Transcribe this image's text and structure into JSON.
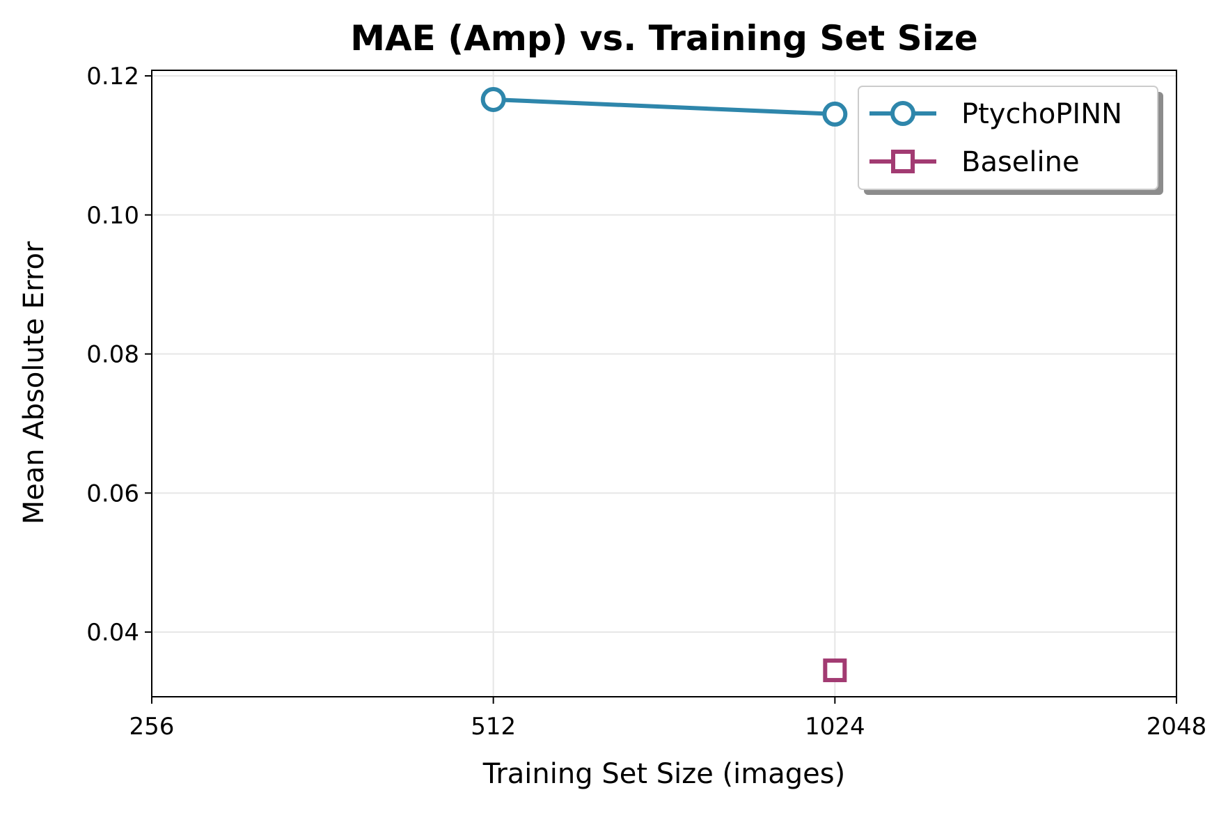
{
  "chart_data": {
    "type": "line",
    "title": "MAE (Amp) vs. Training Set Size",
    "xlabel": "Training Set Size (images)",
    "ylabel": "Mean Absolute Error",
    "x_scale": "log2",
    "x_ticks": [
      256,
      512,
      1024,
      2048
    ],
    "x_tick_labels": [
      "256",
      "512",
      "1024",
      "2048"
    ],
    "xlim": [
      256,
      2048
    ],
    "y_ticks": [
      0.04,
      0.06,
      0.08,
      0.1,
      0.12
    ],
    "y_tick_labels": [
      "0.04",
      "0.06",
      "0.08",
      "0.10",
      "0.12"
    ],
    "ylim": [
      0.0307,
      0.1208
    ],
    "grid": true,
    "legend_position": "top-right",
    "series": [
      {
        "name": "PtychoPINN",
        "x": [
          512,
          1024
        ],
        "y": [
          0.1166,
          0.1145
        ],
        "color": "#2e86ab",
        "marker": "circle",
        "line": true
      },
      {
        "name": "Baseline",
        "x": [
          1024
        ],
        "y": [
          0.0345
        ],
        "color": "#a23b72",
        "marker": "square",
        "line": true
      }
    ]
  }
}
